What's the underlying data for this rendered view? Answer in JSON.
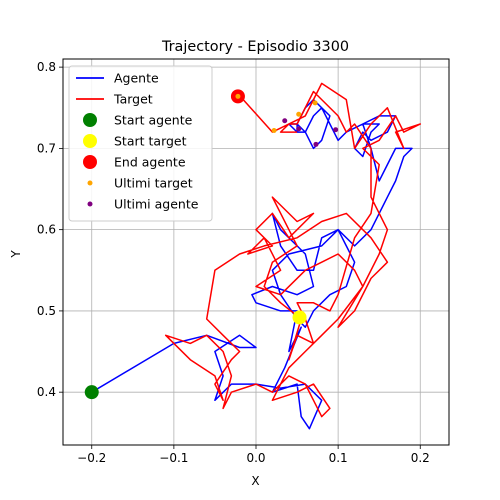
{
  "chart_data": {
    "type": "line",
    "title": "Trajectory - Episodio 3300",
    "xlabel": "X",
    "ylabel": "Y",
    "xlim": [
      -0.235,
      0.235
    ],
    "ylim": [
      0.335,
      0.81
    ],
    "xticks": [
      -0.2,
      -0.1,
      0.0,
      0.1,
      0.2
    ],
    "xtick_labels": [
      "−0.2",
      "−0.1",
      "0.0",
      "0.1",
      "0.2"
    ],
    "yticks": [
      0.4,
      0.5,
      0.6,
      0.7,
      0.8
    ],
    "ytick_labels": [
      "0.4",
      "0.5",
      "0.6",
      "0.7",
      "0.8"
    ],
    "grid": true,
    "legend_position": "top-left",
    "series": [
      {
        "name": "Agente",
        "kind": "line",
        "color": "#0000ff",
        "points": [
          [
            -0.2,
            0.4
          ],
          [
            -0.1,
            0.46
          ],
          [
            -0.06,
            0.47
          ],
          [
            -0.02,
            0.455
          ],
          [
            0.0,
            0.455
          ],
          [
            -0.02,
            0.47
          ],
          [
            -0.05,
            0.45
          ],
          [
            -0.04,
            0.42
          ],
          [
            -0.05,
            0.39
          ],
          [
            -0.03,
            0.41
          ],
          [
            0.0,
            0.41
          ],
          [
            0.03,
            0.405
          ],
          [
            0.06,
            0.41
          ],
          [
            0.08,
            0.39
          ],
          [
            0.065,
            0.355
          ],
          [
            0.055,
            0.37
          ],
          [
            0.05,
            0.41
          ],
          [
            0.02,
            0.4
          ],
          [
            0.035,
            0.43
          ],
          [
            0.055,
            0.48
          ],
          [
            0.04,
            0.45
          ],
          [
            0.05,
            0.5
          ],
          [
            0.03,
            0.5
          ],
          [
            0.0,
            0.51
          ],
          [
            -0.005,
            0.52
          ],
          [
            0.02,
            0.53
          ],
          [
            0.05,
            0.52
          ],
          [
            0.07,
            0.53
          ],
          [
            0.06,
            0.57
          ],
          [
            0.05,
            0.58
          ],
          [
            0.03,
            0.6
          ],
          [
            0.02,
            0.62
          ],
          [
            0.03,
            0.58
          ],
          [
            0.05,
            0.55
          ],
          [
            0.07,
            0.55
          ],
          [
            0.08,
            0.59
          ],
          [
            0.1,
            0.6
          ],
          [
            0.11,
            0.58
          ],
          [
            0.12,
            0.56
          ],
          [
            0.11,
            0.53
          ],
          [
            0.09,
            0.52
          ],
          [
            0.07,
            0.5
          ],
          [
            0.06,
            0.48
          ],
          [
            0.05,
            0.49
          ],
          [
            0.03,
            0.52
          ],
          [
            0.02,
            0.55
          ],
          [
            0.04,
            0.57
          ],
          [
            0.08,
            0.58
          ],
          [
            0.1,
            0.6
          ],
          [
            0.12,
            0.58
          ],
          [
            0.14,
            0.6
          ],
          [
            0.16,
            0.64
          ],
          [
            0.17,
            0.66
          ],
          [
            0.18,
            0.69
          ],
          [
            0.19,
            0.7
          ],
          [
            0.17,
            0.7
          ],
          [
            0.16,
            0.68
          ],
          [
            0.15,
            0.66
          ],
          [
            0.14,
            0.7
          ],
          [
            0.13,
            0.73
          ],
          [
            0.15,
            0.74
          ],
          [
            0.17,
            0.74
          ],
          [
            0.16,
            0.72
          ],
          [
            0.14,
            0.71
          ],
          [
            0.13,
            0.72
          ],
          [
            0.12,
            0.7
          ],
          [
            0.13,
            0.69
          ],
          [
            0.14,
            0.72
          ],
          [
            0.15,
            0.73
          ],
          [
            0.13,
            0.73
          ],
          [
            0.11,
            0.72
          ],
          [
            0.1,
            0.71
          ],
          [
            0.09,
            0.73
          ],
          [
            0.08,
            0.75
          ],
          [
            0.07,
            0.76
          ],
          [
            0.06,
            0.75
          ],
          [
            0.05,
            0.73
          ],
          [
            0.04,
            0.73
          ],
          [
            0.05,
            0.72
          ],
          [
            0.06,
            0.72
          ],
          [
            0.07,
            0.74
          ],
          [
            0.08,
            0.75
          ],
          [
            0.09,
            0.74
          ],
          [
            0.08,
            0.71
          ],
          [
            0.07,
            0.7
          ],
          [
            0.06,
            0.72
          ],
          [
            0.05,
            0.73
          ],
          [
            0.05,
            0.72
          ]
        ]
      },
      {
        "name": "Target",
        "kind": "line",
        "color": "#ff0000",
        "points": [
          [
            -0.02,
            0.765
          ],
          [
            0.02,
            0.72
          ],
          [
            0.06,
            0.74
          ],
          [
            0.08,
            0.78
          ],
          [
            0.11,
            0.76
          ],
          [
            0.12,
            0.7
          ],
          [
            0.14,
            0.73
          ],
          [
            0.16,
            0.75
          ],
          [
            0.18,
            0.7
          ],
          [
            0.17,
            0.72
          ],
          [
            0.2,
            0.73
          ],
          [
            0.18,
            0.72
          ],
          [
            0.17,
            0.74
          ],
          [
            0.15,
            0.71
          ],
          [
            0.13,
            0.7
          ],
          [
            0.15,
            0.68
          ],
          [
            0.14,
            0.62
          ],
          [
            0.12,
            0.59
          ],
          [
            0.1,
            0.52
          ],
          [
            0.09,
            0.5
          ],
          [
            0.07,
            0.51
          ],
          [
            0.05,
            0.51
          ],
          [
            0.06,
            0.49
          ],
          [
            0.07,
            0.46
          ],
          [
            0.05,
            0.47
          ],
          [
            0.04,
            0.44
          ],
          [
            0.055,
            0.49
          ],
          [
            0.03,
            0.51
          ],
          [
            0.01,
            0.53
          ],
          [
            0.02,
            0.56
          ],
          [
            0.05,
            0.58
          ],
          [
            0.04,
            0.6
          ],
          [
            0.02,
            0.64
          ],
          [
            0.05,
            0.61
          ],
          [
            0.07,
            0.62
          ],
          [
            0.04,
            0.59
          ],
          [
            0.02,
            0.62
          ],
          [
            0.0,
            0.6
          ],
          [
            0.02,
            0.58
          ],
          [
            -0.01,
            0.57
          ],
          [
            0.01,
            0.59
          ],
          [
            0.03,
            0.55
          ],
          [
            0.0,
            0.53
          ],
          [
            0.03,
            0.52
          ],
          [
            0.06,
            0.55
          ],
          [
            0.08,
            0.56
          ],
          [
            0.1,
            0.57
          ],
          [
            0.12,
            0.55
          ],
          [
            0.13,
            0.53
          ],
          [
            0.1,
            0.49
          ],
          [
            0.08,
            0.47
          ],
          [
            0.06,
            0.45
          ],
          [
            0.04,
            0.43
          ],
          [
            0.03,
            0.41
          ],
          [
            0.02,
            0.39
          ],
          [
            0.05,
            0.4
          ],
          [
            0.07,
            0.41
          ],
          [
            0.09,
            0.38
          ],
          [
            0.08,
            0.37
          ],
          [
            0.07,
            0.39
          ],
          [
            0.06,
            0.41
          ],
          [
            0.04,
            0.42
          ],
          [
            0.02,
            0.4
          ],
          [
            0.0,
            0.41
          ],
          [
            -0.03,
            0.4
          ],
          [
            -0.04,
            0.38
          ],
          [
            -0.03,
            0.42
          ],
          [
            -0.04,
            0.45
          ],
          [
            -0.06,
            0.47
          ],
          [
            -0.08,
            0.46
          ],
          [
            -0.11,
            0.47
          ],
          [
            -0.08,
            0.44
          ],
          [
            -0.05,
            0.42
          ],
          [
            -0.04,
            0.39
          ],
          [
            -0.05,
            0.41
          ],
          [
            -0.03,
            0.44
          ],
          [
            -0.02,
            0.45
          ],
          [
            -0.04,
            0.47
          ],
          [
            -0.06,
            0.49
          ],
          [
            -0.05,
            0.55
          ],
          [
            -0.02,
            0.57
          ],
          [
            0.01,
            0.58
          ],
          [
            0.05,
            0.59
          ],
          [
            0.08,
            0.61
          ],
          [
            0.11,
            0.62
          ],
          [
            0.14,
            0.59
          ],
          [
            0.16,
            0.56
          ],
          [
            0.14,
            0.54
          ],
          [
            0.12,
            0.5
          ],
          [
            0.1,
            0.48
          ],
          [
            0.13,
            0.53
          ],
          [
            0.15,
            0.57
          ],
          [
            0.16,
            0.6
          ],
          [
            0.14,
            0.64
          ],
          [
            0.14,
            0.7
          ],
          [
            0.12,
            0.73
          ],
          [
            0.11,
            0.72
          ],
          [
            0.1,
            0.74
          ],
          [
            0.08,
            0.76
          ],
          [
            0.07,
            0.77
          ],
          [
            0.05,
            0.73
          ],
          [
            0.04,
            0.73
          ],
          [
            0.03,
            0.72
          ],
          [
            0.05,
            0.72
          ]
        ]
      },
      {
        "name": "Start agente",
        "kind": "scatter",
        "color": "#008000",
        "points": [
          [
            -0.2,
            0.4
          ]
        ]
      },
      {
        "name": "Start target",
        "kind": "scatter",
        "color": "#ffff00",
        "points": [
          [
            0.053,
            0.492
          ]
        ]
      },
      {
        "name": "End agente",
        "kind": "scatter",
        "color": "#ff0000",
        "points": [
          [
            -0.022,
            0.764
          ]
        ]
      },
      {
        "name": "Ultimi target",
        "kind": "scatter",
        "color": "#ffa500",
        "points": [
          [
            -0.022,
            0.764
          ],
          [
            0.022,
            0.722
          ],
          [
            0.052,
            0.742
          ],
          [
            0.072,
            0.756
          ]
        ]
      },
      {
        "name": "Ultimi agente",
        "kind": "scatter",
        "color": "#800080",
        "points": [
          [
            0.035,
            0.734
          ],
          [
            0.052,
            0.724
          ],
          [
            0.073,
            0.705
          ],
          [
            0.097,
            0.723
          ]
        ]
      }
    ]
  }
}
